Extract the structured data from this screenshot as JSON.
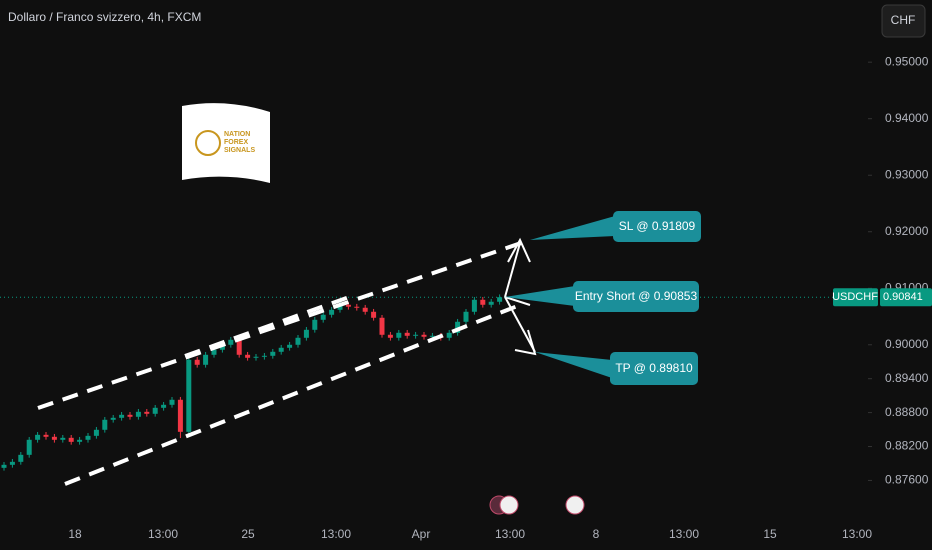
{
  "chart_data": {
    "type": "candlestick",
    "title": "Dollaro / Franco svizzero, 4h, FXCM",
    "currency": "CHF",
    "symbol": "USDCHF",
    "last_price": 0.90841,
    "up_color": "#089981",
    "down_color": "#f23645",
    "ylim": [
      0.869,
      0.961
    ],
    "yticks": [
      {
        "value": 0.95,
        "label": "0.95000"
      },
      {
        "value": 0.94,
        "label": "0.94000"
      },
      {
        "value": 0.93,
        "label": "0.93000"
      },
      {
        "value": 0.92,
        "label": "0.92000"
      },
      {
        "value": 0.91,
        "label": "0.91000"
      },
      {
        "value": 0.9,
        "label": "0.90000"
      },
      {
        "value": 0.894,
        "label": "0.89400"
      },
      {
        "value": 0.888,
        "label": "0.88800"
      },
      {
        "value": 0.882,
        "label": "0.88200"
      },
      {
        "value": 0.876,
        "label": "0.87600"
      }
    ],
    "xtick_labels": [
      "18",
      "13:00",
      "25",
      "13:00",
      "Apr",
      "13:00",
      "8",
      "13:00",
      "15",
      "13:00"
    ],
    "annotations": [
      "SL @ 0.91809",
      "Entry Short @ 0.90853",
      "TP @ 0.89810"
    ],
    "logo": [
      "NATION",
      "FOREX",
      "SIGNALS"
    ],
    "open": [
      0.87823,
      0.87876,
      0.87929,
      0.88053,
      0.88319,
      0.88407,
      0.88372,
      0.88319,
      0.88354,
      0.88283,
      0.88319,
      0.88389,
      0.88496,
      0.88673,
      0.88708,
      0.88761,
      0.88726,
      0.88814,
      0.88779,
      0.88885,
      0.88938,
      0.89027,
      0.8846,
      0.89735,
      0.89646,
      0.89823,
      0.89912,
      0.9,
      0.90088,
      0.89823,
      0.8977,
      0.89788,
      0.89805,
      0.89876,
      0.89947,
      0.9,
      0.90124,
      0.90265,
      0.90442,
      0.90531,
      0.90619,
      0.90708,
      0.90673,
      0.90655,
      0.90584,
      0.90478,
      0.90177,
      0.90124,
      0.90212,
      0.90159,
      0.90177,
      0.90142,
      0.90159,
      0.90124,
      0.90212,
      0.90407,
      0.90584,
      0.90796,
      0.90708,
      0.90761
    ],
    "high": [
      0.87926,
      0.87979,
      0.88103,
      0.88369,
      0.88457,
      0.88457,
      0.88422,
      0.88404,
      0.88404,
      0.88369,
      0.88439,
      0.88546,
      0.88723,
      0.88758,
      0.88811,
      0.88811,
      0.88864,
      0.88864,
      0.88935,
      0.88988,
      0.89077,
      0.89077,
      0.89785,
      0.89785,
      0.89873,
      0.89962,
      0.9005,
      0.90138,
      0.90138,
      0.89873,
      0.89838,
      0.89855,
      0.89926,
      0.89997,
      0.9005,
      0.90174,
      0.90315,
      0.90492,
      0.90581,
      0.90669,
      0.90758,
      0.90758,
      0.90723,
      0.90705,
      0.90634,
      0.90528,
      0.90227,
      0.90262,
      0.90262,
      0.90227,
      0.90227,
      0.90209,
      0.90209,
      0.90262,
      0.90457,
      0.90634,
      0.90846,
      0.90846,
      0.90811,
      0.90891
    ],
    "low": [
      0.87773,
      0.87826,
      0.87879,
      0.88003,
      0.88269,
      0.88322,
      0.88269,
      0.88269,
      0.88233,
      0.88233,
      0.88269,
      0.88339,
      0.88446,
      0.88623,
      0.88658,
      0.88676,
      0.88676,
      0.88729,
      0.88729,
      0.88835,
      0.88888,
      0.8835,
      0.8841,
      0.89596,
      0.89596,
      0.89773,
      0.89862,
      0.8995,
      0.89773,
      0.8972,
      0.8972,
      0.89738,
      0.89755,
      0.89826,
      0.89897,
      0.8995,
      0.90074,
      0.90215,
      0.90392,
      0.90481,
      0.90569,
      0.90623,
      0.90605,
      0.90534,
      0.90428,
      0.90127,
      0.90074,
      0.90074,
      0.90109,
      0.90109,
      0.90092,
      0.90092,
      0.90074,
      0.90074,
      0.90162,
      0.90357,
      0.90534,
      0.90658,
      0.90658,
      0.90711
    ],
    "close": [
      0.87876,
      0.87929,
      0.88053,
      0.88319,
      0.88407,
      0.88372,
      0.88319,
      0.88354,
      0.88283,
      0.88319,
      0.88389,
      0.88496,
      0.88673,
      0.88708,
      0.88761,
      0.88726,
      0.88814,
      0.88779,
      0.88885,
      0.88938,
      0.89027,
      0.8846,
      0.89735,
      0.89646,
      0.89823,
      0.89912,
      0.9,
      0.90088,
      0.89823,
      0.8977,
      0.89788,
      0.89805,
      0.89876,
      0.89947,
      0.9,
      0.90124,
      0.90265,
      0.90442,
      0.90531,
      0.90619,
      0.90708,
      0.90673,
      0.90655,
      0.90584,
      0.90478,
      0.90177,
      0.90124,
      0.90212,
      0.90159,
      0.90177,
      0.90142,
      0.90159,
      0.90124,
      0.90212,
      0.90407,
      0.90584,
      0.90796,
      0.90708,
      0.90761,
      0.90841
    ]
  }
}
